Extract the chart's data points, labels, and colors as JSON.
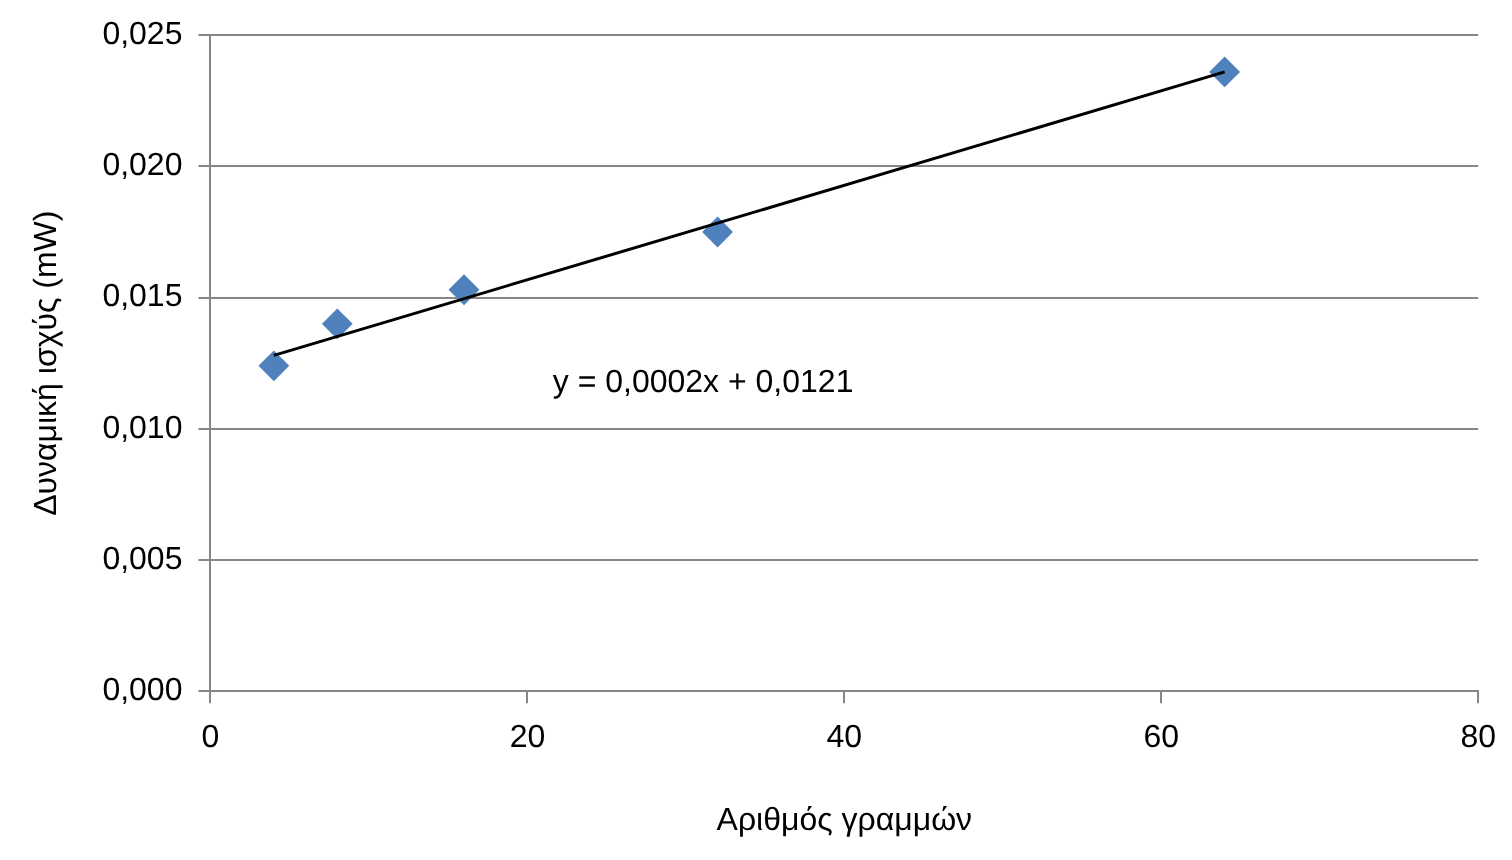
{
  "chart_data": {
    "type": "scatter",
    "xlabel": "Αριθμός γραμμών",
    "ylabel": "Δυναμική ισχύς (mW)",
    "x": [
      4,
      8,
      16,
      32,
      64
    ],
    "series": [
      {
        "type": "scatter",
        "color": "#4f81bd",
        "marker": "diamond",
        "values": [
          0.0124,
          0.014,
          0.0153,
          0.0175,
          0.0236
        ]
      },
      {
        "type": "line",
        "color": "#000000",
        "marker": "none",
        "x": [
          4,
          64
        ],
        "values": [
          0.0128,
          0.0236
        ]
      }
    ],
    "xlim": [
      0,
      80
    ],
    "xticks": [
      0,
      20,
      40,
      60,
      80
    ],
    "ylim": [
      0,
      0.025
    ],
    "yticks": [
      {
        "value": 0,
        "label": "0,000"
      },
      {
        "value": 0.005,
        "label": "0,005"
      },
      {
        "value": 0.01,
        "label": "0,010"
      },
      {
        "value": 0.015,
        "label": "0,015"
      },
      {
        "value": 0.02,
        "label": "0,020"
      },
      {
        "value": 0.025,
        "label": "0,025"
      }
    ],
    "grid": "y",
    "annotations": [
      "y = 0,0002x + 0,0121"
    ]
  }
}
